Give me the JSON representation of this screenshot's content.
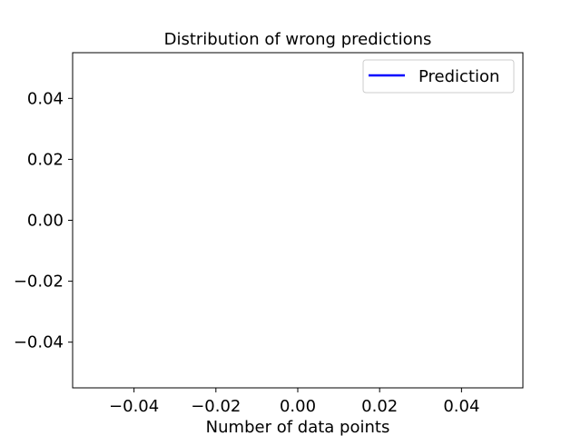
{
  "chart_data": {
    "type": "line",
    "title": "Distribution of wrong predictions",
    "xlabel": "Number of data points",
    "ylabel": "",
    "xlim": [
      -0.055,
      0.055
    ],
    "ylim": [
      -0.055,
      0.055
    ],
    "x_ticks": [
      -0.04,
      -0.02,
      0.0,
      0.02,
      0.04
    ],
    "x_tick_labels": [
      "−0.04",
      "−0.02",
      "0.00",
      "0.02",
      "0.04"
    ],
    "y_ticks": [
      -0.04,
      -0.02,
      0.0,
      0.02,
      0.04
    ],
    "y_tick_labels": [
      "−0.04",
      "−0.02",
      "0.00",
      "0.02",
      "0.04"
    ],
    "grid": false,
    "legend_position": "top-right",
    "series": [
      {
        "name": "Prediction",
        "color": "#0000ff",
        "x": [],
        "y": []
      }
    ]
  }
}
